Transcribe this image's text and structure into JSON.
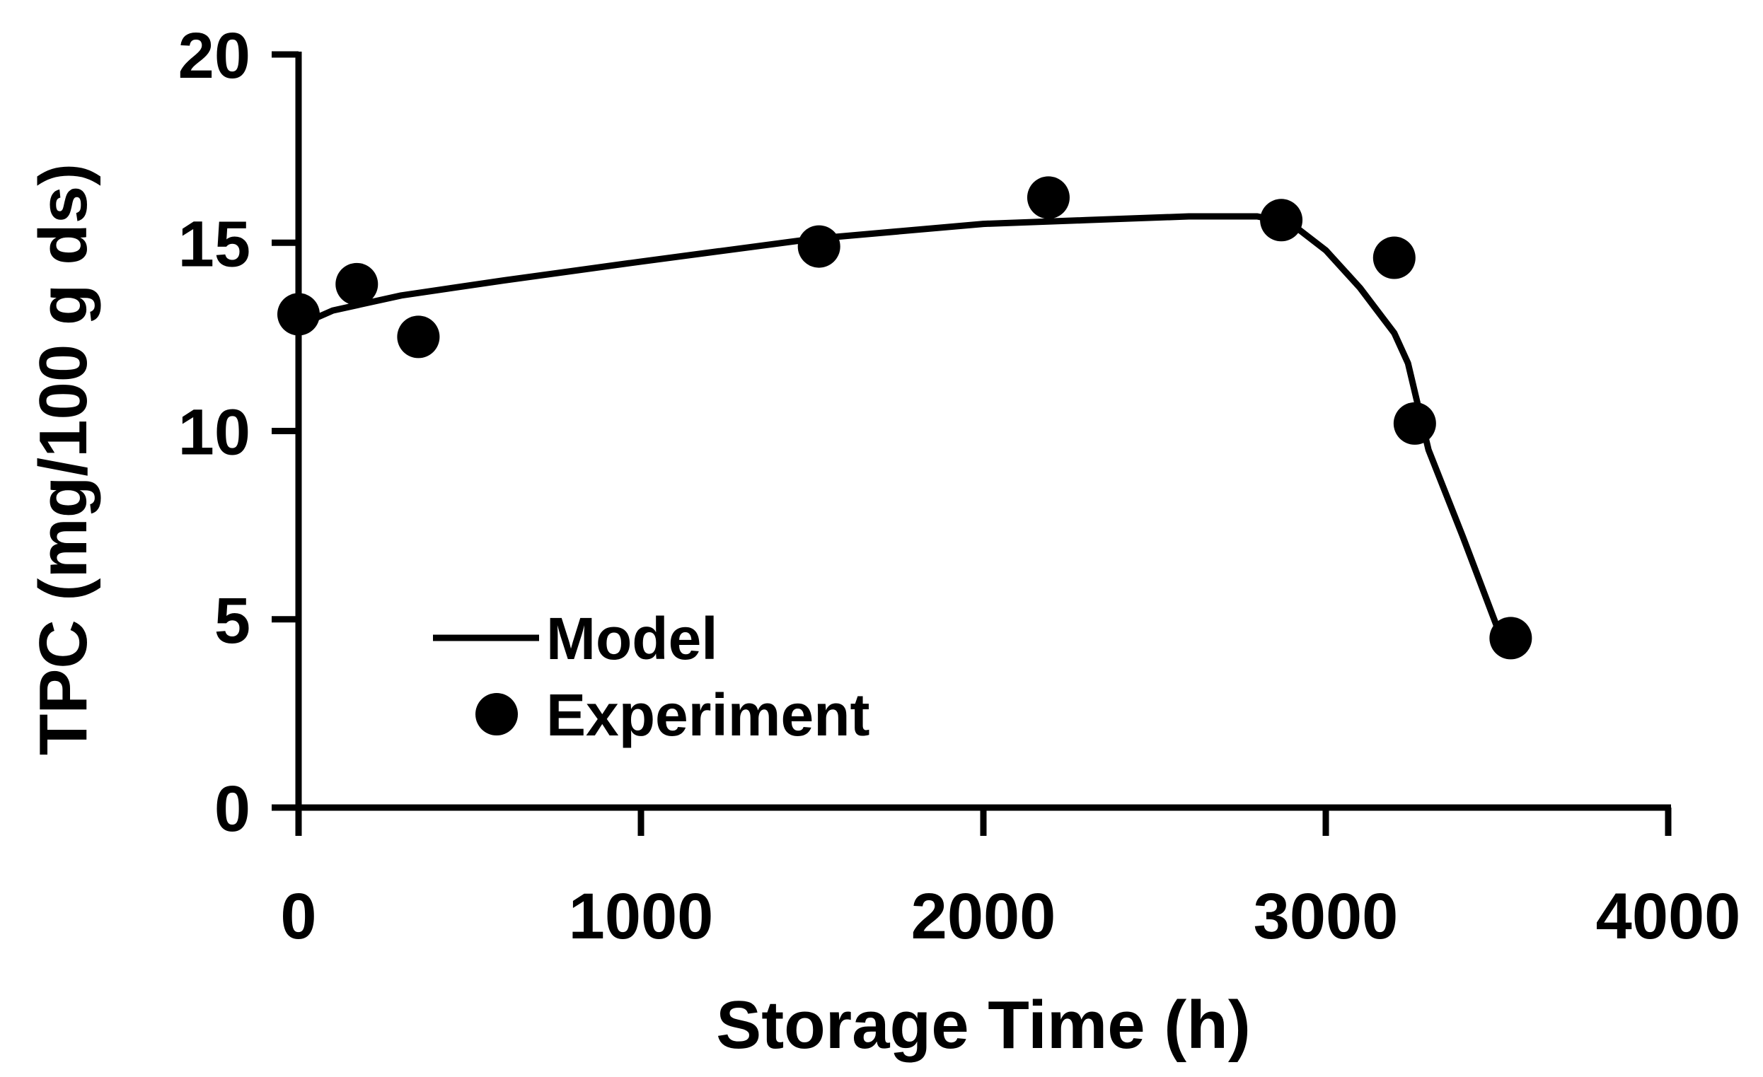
{
  "chart_data": {
    "type": "line",
    "xlabel": "Storage Time (h)",
    "ylabel": "TPC (mg/100 g ds)",
    "xlim": [
      0,
      4000
    ],
    "ylim": [
      0,
      20
    ],
    "x_ticks": [
      0,
      1000,
      2000,
      3000,
      4000
    ],
    "y_ticks": [
      0,
      5,
      10,
      15,
      20
    ],
    "grid": false,
    "legend_position": "lower-left",
    "series": [
      {
        "name": "Model",
        "kind": "line",
        "color": "#000000",
        "x": [
          0,
          100,
          300,
          600,
          1000,
          1500,
          2000,
          2300,
          2600,
          2800,
          2900,
          3000,
          3100,
          3150,
          3200,
          3240,
          3300,
          3400,
          3500
        ],
        "y": [
          12.8,
          13.2,
          13.6,
          14.0,
          14.5,
          15.1,
          15.5,
          15.6,
          15.7,
          15.7,
          15.5,
          14.8,
          13.8,
          13.2,
          12.6,
          11.8,
          9.5,
          7.2,
          4.8
        ]
      },
      {
        "name": "Experiment",
        "kind": "scatter",
        "color": "#000000",
        "x": [
          0,
          170,
          350,
          1520,
          2190,
          2870,
          3200,
          3260,
          3540
        ],
        "y": [
          13.1,
          13.9,
          12.5,
          14.9,
          16.2,
          15.6,
          14.6,
          10.2,
          4.5
        ]
      }
    ]
  }
}
